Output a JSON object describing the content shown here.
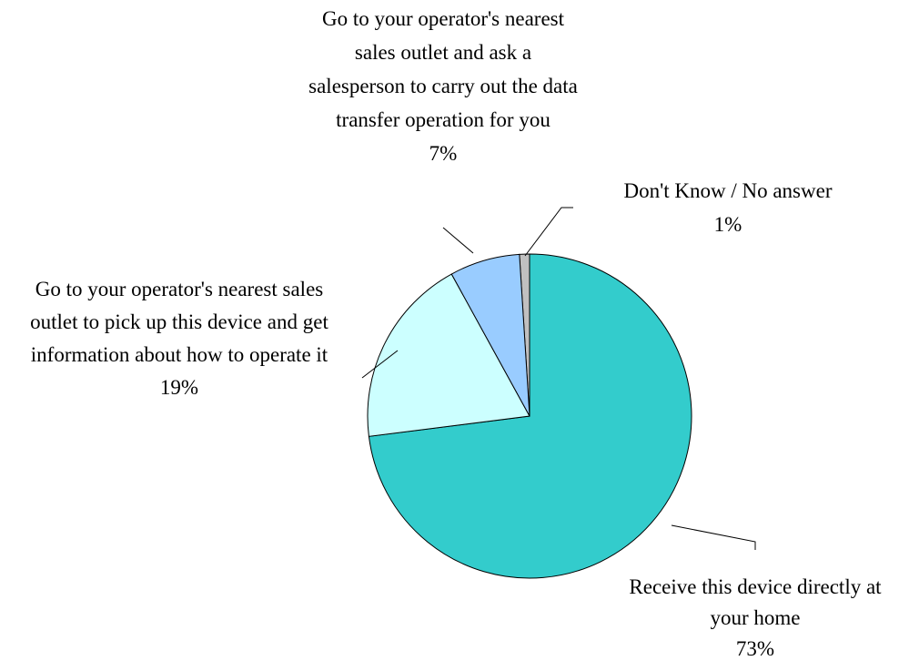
{
  "chart_data": {
    "type": "pie",
    "categories": [
      "Receive this device directly at your home",
      "Go to your operator's nearest sales outlet to pick up this device and get information about how to operate it",
      "Go to your operator's nearest sales outlet and ask a salesperson to carry out the data transfer operation for you",
      "Don't Know / No answer"
    ],
    "values": [
      73,
      19,
      7,
      1
    ],
    "value_labels": [
      "73%",
      "19%",
      "7%",
      "1%"
    ],
    "colors": [
      "#33cccc",
      "#ccffff",
      "#99ccff",
      "#c0c0c0"
    ]
  }
}
